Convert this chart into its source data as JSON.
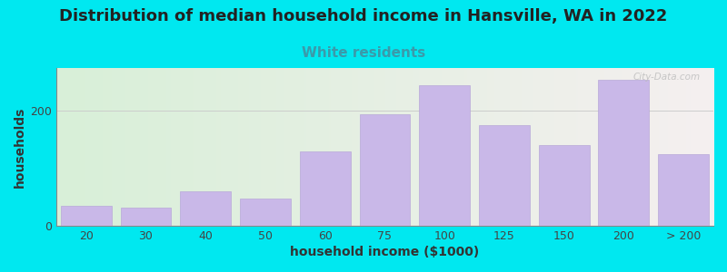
{
  "title": "Distribution of median household income in Hansville, WA in 2022",
  "subtitle": "White residents",
  "xlabel": "household income ($1000)",
  "ylabel": "households",
  "bar_labels": [
    "20",
    "30",
    "40",
    "50",
    "60",
    "75",
    "100",
    "125",
    "150",
    "200",
    "> 200"
  ],
  "bar_values": [
    35,
    32,
    60,
    47,
    130,
    195,
    245,
    175,
    140,
    255,
    125
  ],
  "bar_color": "#c9b8e8",
  "bar_edgecolor": "#b8a8d8",
  "bg_outer": "#00e8f0",
  "plot_bg_left": "#d8efd8",
  "plot_bg_right": "#f5f0f0",
  "title_fontsize": 13,
  "subtitle_fontsize": 11,
  "subtitle_color": "#3a9aaa",
  "axis_label_fontsize": 10,
  "tick_fontsize": 9,
  "ylim": [
    0,
    275
  ],
  "yticks": [
    0,
    200
  ],
  "watermark": "City-Data.com"
}
